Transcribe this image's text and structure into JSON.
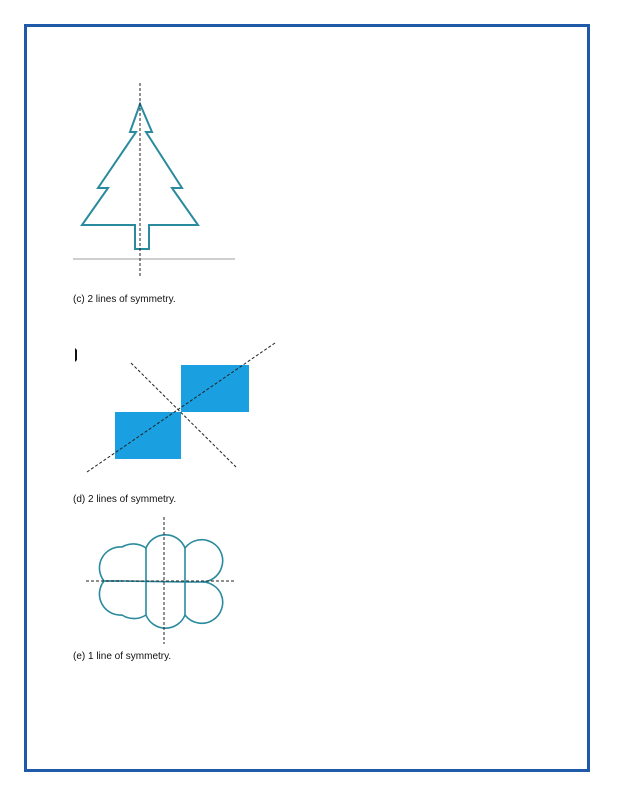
{
  "colors": {
    "frame": "#1e5aa8",
    "outline": "#2a8a9e",
    "fill": "#1a9fe0",
    "dashed": "#222222",
    "baseline": "#cfcfcf"
  },
  "figures": [
    {
      "kind": "tree-outline",
      "caption": "(c) 2 lines of symmetry."
    },
    {
      "kind": "diagonal-squares",
      "caption": "(d) 2 lines of symmetry."
    },
    {
      "kind": "cloud-shape",
      "caption": "(e) 1 line of symmetry."
    }
  ]
}
